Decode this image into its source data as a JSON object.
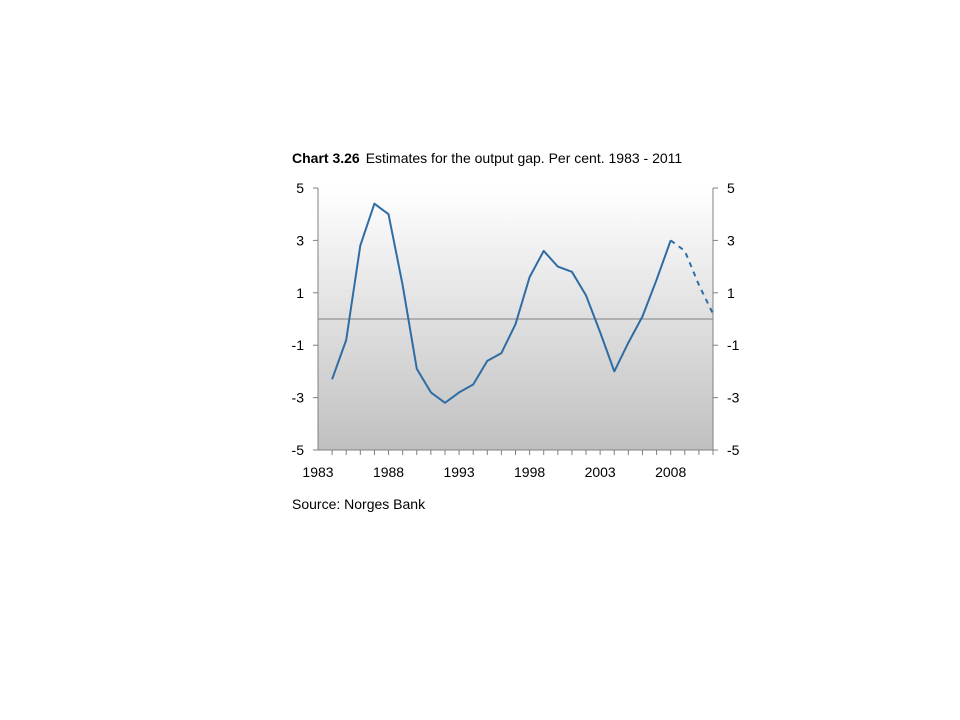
{
  "chart_data": {
    "type": "line",
    "label": "Chart 3.26",
    "title": "Estimates for the output gap. Per cent. 1983 - 2011",
    "source": "Source: Norges Bank",
    "xlim": [
      1983,
      2011
    ],
    "ylim": [
      -5,
      5
    ],
    "x_ticks": [
      1983,
      1988,
      1993,
      1998,
      2003,
      2008
    ],
    "y_ticks": [
      5,
      3,
      1,
      -1,
      -3,
      -5
    ],
    "grid": false,
    "legend": "none",
    "colors": {
      "line": "#2e6da4",
      "zero_line": "#808080",
      "axis": "#808080"
    },
    "series": [
      {
        "style": "solid",
        "x": [
          1984,
          1985,
          1986,
          1987,
          1988,
          1989,
          1990,
          1991,
          1992,
          1993,
          1994,
          1995,
          1996,
          1997,
          1998,
          1999,
          2000,
          2001,
          2002,
          2003,
          2004,
          2005,
          2006,
          2007,
          2008
        ],
        "values": [
          -2.3,
          -0.8,
          2.8,
          4.4,
          4.0,
          1.3,
          -1.9,
          -2.8,
          -3.2,
          -2.8,
          -2.5,
          -1.6,
          -1.3,
          -0.2,
          1.6,
          2.6,
          2.0,
          1.8,
          0.9,
          -0.5,
          -2.0,
          -0.9,
          0.1,
          1.5,
          3.0
        ]
      },
      {
        "style": "dashed",
        "x": [
          2008,
          2009,
          2010,
          2011
        ],
        "values": [
          3.0,
          2.6,
          1.3,
          0.2
        ]
      }
    ]
  }
}
